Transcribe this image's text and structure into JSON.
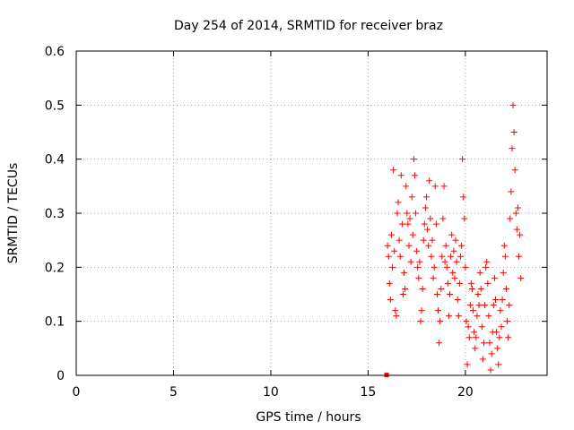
{
  "chart_data": {
    "type": "scatter",
    "title": "Day 254 of 2014, SRMTID for receiver braz",
    "xlabel": "GPS time / hours",
    "ylabel": "SRMTID / TECUs",
    "xlim": [
      0,
      24.2
    ],
    "ylim": [
      0,
      0.6
    ],
    "x_ticks": [
      0,
      5,
      10,
      15,
      20
    ],
    "y_ticks": [
      0,
      0.1,
      0.2,
      0.3,
      0.4,
      0.5,
      0.6
    ],
    "x_tick_labels": [
      "0",
      "5",
      "10",
      "15",
      "20"
    ],
    "y_tick_labels": [
      "0",
      "0.1",
      "0.2",
      "0.3",
      "0.4",
      "0.5",
      "0.6"
    ],
    "grid": true,
    "marker": "+",
    "color": "#ff0000",
    "outlier_point": {
      "x": 15.95,
      "y": 0.0
    },
    "series": [
      {
        "name": "SRMTID",
        "points": [
          [
            16.0,
            0.24
          ],
          [
            16.05,
            0.22
          ],
          [
            16.1,
            0.17
          ],
          [
            16.15,
            0.14
          ],
          [
            16.2,
            0.26
          ],
          [
            16.25,
            0.2
          ],
          [
            16.3,
            0.38
          ],
          [
            16.35,
            0.23
          ],
          [
            16.4,
            0.12
          ],
          [
            16.45,
            0.11
          ],
          [
            16.5,
            0.3
          ],
          [
            16.55,
            0.32
          ],
          [
            16.6,
            0.25
          ],
          [
            16.65,
            0.22
          ],
          [
            16.7,
            0.37
          ],
          [
            16.75,
            0.28
          ],
          [
            16.8,
            0.15
          ],
          [
            16.85,
            0.19
          ],
          [
            16.9,
            0.16
          ],
          [
            16.95,
            0.35
          ],
          [
            17.0,
            0.3
          ],
          [
            17.05,
            0.28
          ],
          [
            17.1,
            0.24
          ],
          [
            17.15,
            0.29
          ],
          [
            17.2,
            0.21
          ],
          [
            17.25,
            0.33
          ],
          [
            17.3,
            0.26
          ],
          [
            17.35,
            0.4
          ],
          [
            17.4,
            0.37
          ],
          [
            17.45,
            0.3
          ],
          [
            17.5,
            0.23
          ],
          [
            17.55,
            0.2
          ],
          [
            17.6,
            0.18
          ],
          [
            17.65,
            0.21
          ],
          [
            17.7,
            0.1
          ],
          [
            17.75,
            0.12
          ],
          [
            17.8,
            0.16
          ],
          [
            17.85,
            0.25
          ],
          [
            17.9,
            0.28
          ],
          [
            17.95,
            0.31
          ],
          [
            18.0,
            0.33
          ],
          [
            18.05,
            0.27
          ],
          [
            18.1,
            0.24
          ],
          [
            18.15,
            0.36
          ],
          [
            18.2,
            0.29
          ],
          [
            18.25,
            0.22
          ],
          [
            18.3,
            0.25
          ],
          [
            18.35,
            0.18
          ],
          [
            18.4,
            0.2
          ],
          [
            18.45,
            0.35
          ],
          [
            18.5,
            0.28
          ],
          [
            18.55,
            0.15
          ],
          [
            18.6,
            0.12
          ],
          [
            18.65,
            0.06
          ],
          [
            18.7,
            0.1
          ],
          [
            18.75,
            0.16
          ],
          [
            18.8,
            0.22
          ],
          [
            18.85,
            0.29
          ],
          [
            18.9,
            0.35
          ],
          [
            18.95,
            0.21
          ],
          [
            19.0,
            0.24
          ],
          [
            19.05,
            0.2
          ],
          [
            19.1,
            0.17
          ],
          [
            19.15,
            0.11
          ],
          [
            19.2,
            0.15
          ],
          [
            19.25,
            0.22
          ],
          [
            19.3,
            0.26
          ],
          [
            19.35,
            0.19
          ],
          [
            19.4,
            0.23
          ],
          [
            19.45,
            0.18
          ],
          [
            19.5,
            0.25
          ],
          [
            19.55,
            0.21
          ],
          [
            19.6,
            0.14
          ],
          [
            19.65,
            0.11
          ],
          [
            19.7,
            0.17
          ],
          [
            19.75,
            0.22
          ],
          [
            19.8,
            0.24
          ],
          [
            19.85,
            0.4
          ],
          [
            19.9,
            0.33
          ],
          [
            19.95,
            0.29
          ],
          [
            20.0,
            0.2
          ],
          [
            20.05,
            0.1
          ],
          [
            20.1,
            0.02
          ],
          [
            20.15,
            0.09
          ],
          [
            20.2,
            0.07
          ],
          [
            20.25,
            0.13
          ],
          [
            20.3,
            0.17
          ],
          [
            20.35,
            0.16
          ],
          [
            20.4,
            0.12
          ],
          [
            20.45,
            0.08
          ],
          [
            20.5,
            0.05
          ],
          [
            20.55,
            0.07
          ],
          [
            20.6,
            0.11
          ],
          [
            20.65,
            0.15
          ],
          [
            20.7,
            0.13
          ],
          [
            20.75,
            0.19
          ],
          [
            20.8,
            0.16
          ],
          [
            20.85,
            0.09
          ],
          [
            20.9,
            0.03
          ],
          [
            20.95,
            0.06
          ],
          [
            21.0,
            0.13
          ],
          [
            21.05,
            0.2
          ],
          [
            21.1,
            0.21
          ],
          [
            21.15,
            0.17
          ],
          [
            21.2,
            0.11
          ],
          [
            21.25,
            0.06
          ],
          [
            21.3,
            0.01
          ],
          [
            21.35,
            0.04
          ],
          [
            21.4,
            0.08
          ],
          [
            21.45,
            0.13
          ],
          [
            21.5,
            0.18
          ],
          [
            21.55,
            0.14
          ],
          [
            21.6,
            0.08
          ],
          [
            21.65,
            0.05
          ],
          [
            21.7,
            0.02
          ],
          [
            21.75,
            0.07
          ],
          [
            21.8,
            0.12
          ],
          [
            21.85,
            0.09
          ],
          [
            21.9,
            0.14
          ],
          [
            21.95,
            0.19
          ],
          [
            22.0,
            0.24
          ],
          [
            22.05,
            0.22
          ],
          [
            22.1,
            0.16
          ],
          [
            22.15,
            0.1
          ],
          [
            22.2,
            0.07
          ],
          [
            22.25,
            0.13
          ],
          [
            22.3,
            0.29
          ],
          [
            22.35,
            0.34
          ],
          [
            22.4,
            0.42
          ],
          [
            22.45,
            0.5
          ],
          [
            22.5,
            0.45
          ],
          [
            22.55,
            0.38
          ],
          [
            22.6,
            0.3
          ],
          [
            22.65,
            0.27
          ],
          [
            22.7,
            0.31
          ],
          [
            22.75,
            0.22
          ],
          [
            22.8,
            0.26
          ],
          [
            22.85,
            0.18
          ]
        ]
      }
    ]
  }
}
